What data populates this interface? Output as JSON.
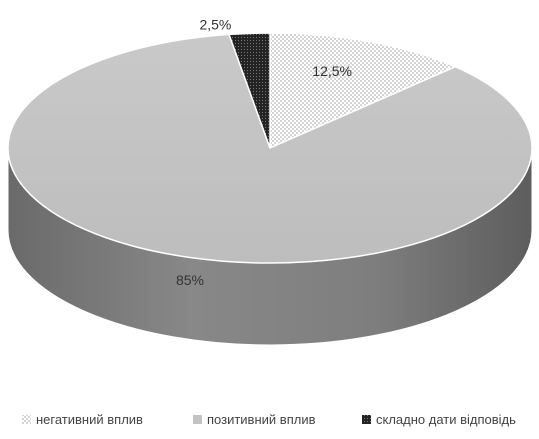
{
  "chart_data": {
    "type": "pie",
    "slices": [
      {
        "label": "негативний вплив",
        "value": 12.5,
        "display": "12,5%",
        "color": "#f4f4f4",
        "pattern": "dots"
      },
      {
        "label": "позитивний вплив",
        "value": 85,
        "display": "85%",
        "color": "#c3c3c3",
        "pattern": "solid"
      },
      {
        "label": "складно дати відповідь",
        "value": 2.5,
        "display": "2,5%",
        "color": "#2b2b2b",
        "pattern": "dots"
      }
    ],
    "legend_position": "bottom",
    "style": "3d"
  }
}
